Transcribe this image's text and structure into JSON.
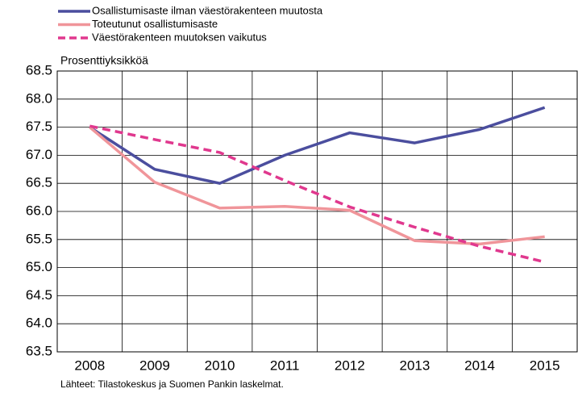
{
  "chart_data": {
    "type": "line",
    "y_label": "Prosenttiyksikköä",
    "source": "Lähteet: Tilastokeskus ja Suomen Pankin laskelmat.",
    "categories": [
      "2008",
      "2009",
      "2010",
      "2011",
      "2012",
      "2013",
      "2014",
      "2015"
    ],
    "series": [
      {
        "name": "Osallistumisaste ilman väestörakenteen muutosta",
        "color": "#4b4e9e",
        "dash": false,
        "values": [
          67.5,
          66.75,
          66.5,
          67.0,
          67.4,
          67.22,
          67.46,
          67.85
        ]
      },
      {
        "name": "Toteutunut osallistumisaste",
        "color": "#f0959a",
        "dash": false,
        "values": [
          67.5,
          66.52,
          66.06,
          66.09,
          66.02,
          65.48,
          65.42,
          65.55
        ]
      },
      {
        "name": "Väestörakenteen muutoksen vaikutus",
        "color": "#e0388e",
        "dash": true,
        "values": [
          67.52,
          67.28,
          67.05,
          66.55,
          66.08,
          65.72,
          65.38,
          65.1
        ]
      }
    ],
    "ylim": [
      63.5,
      68.5
    ],
    "yticks": [
      {
        "value": 63.5,
        "label": "63.5"
      },
      {
        "value": 64,
        "label": "64.0"
      },
      {
        "value": 64.5,
        "label": "64.5"
      },
      {
        "value": 65,
        "label": "65.0"
      },
      {
        "value": 65.5,
        "label": "65.5"
      },
      {
        "value": 66,
        "label": "66.0"
      },
      {
        "value": 66.5,
        "label": "66.5"
      },
      {
        "value": 67,
        "label": "67.0"
      },
      {
        "value": 67.5,
        "label": "67.5"
      },
      {
        "value": 68,
        "label": "68.0"
      },
      {
        "value": 68.5,
        "label": "68.5"
      }
    ],
    "grid": true
  }
}
